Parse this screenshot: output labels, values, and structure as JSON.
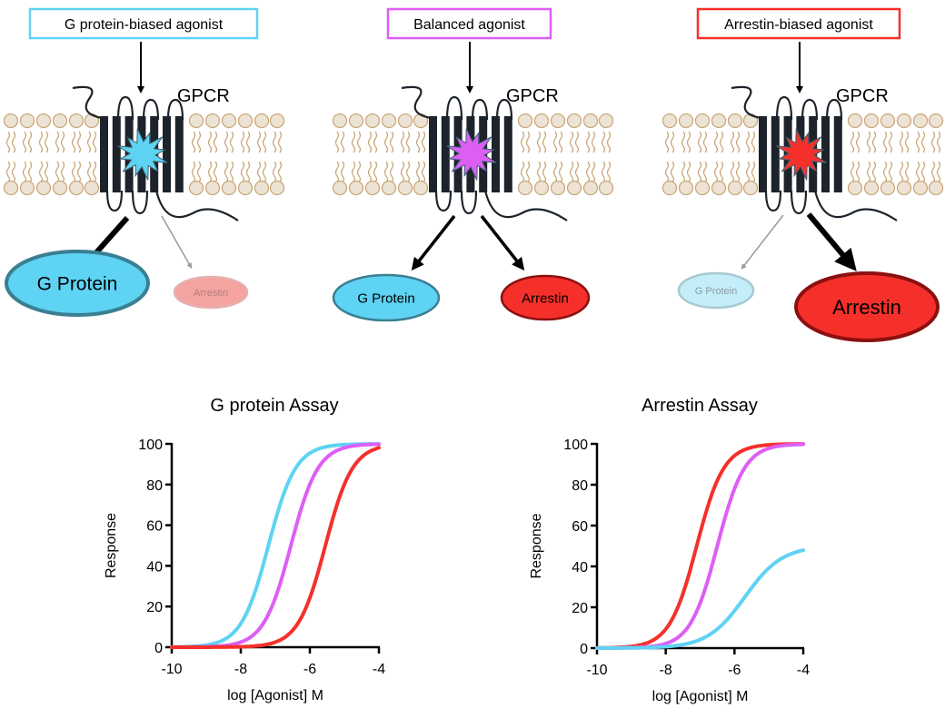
{
  "panels": [
    {
      "label": "G protein-biased agonist",
      "receptor_label": "GPCR",
      "ligand_color": "#5ed3f3",
      "border_color": "#5ed3f3",
      "g_protein": {
        "label": "G Protein",
        "emphasis": "strong"
      },
      "arrestin": {
        "label": "Arrestin",
        "emphasis": "weak"
      }
    },
    {
      "label": "Balanced agonist",
      "receptor_label": "GPCR",
      "ligand_color": "#dd5ef5",
      "border_color": "#dd5ef5",
      "g_protein": {
        "label": "G Protein",
        "emphasis": "medium"
      },
      "arrestin": {
        "label": "Arrestin",
        "emphasis": "medium"
      }
    },
    {
      "label": "Arrestin-biased agonist",
      "receptor_label": "GPCR",
      "ligand_color": "#f5302a",
      "border_color": "#f5302a",
      "g_protein": {
        "label": "G Protein",
        "emphasis": "weak"
      },
      "arrestin": {
        "label": "Arrestin",
        "emphasis": "strong"
      }
    }
  ],
  "colors": {
    "g_protein": "#5ed3f3",
    "balanced": "#dd5ef5",
    "arrestin": "#f5302a",
    "lipid": "#c9a878",
    "lipid_head": "#ede3d4"
  },
  "chart_data": [
    {
      "type": "line",
      "title": "G protein Assay",
      "xlabel": "log [Agonist] M",
      "ylabel": "Response",
      "xlim": [
        -10,
        -4
      ],
      "ylim": [
        0,
        100
      ],
      "xticks": [
        "-10",
        "-8",
        "-6",
        "-4"
      ],
      "yticks": [
        "0",
        "20",
        "40",
        "60",
        "80",
        "100"
      ],
      "grid": false,
      "series": [
        {
          "color": "#5ed3f3",
          "model": "sigmoid",
          "top": 100,
          "log_ec50": -7.2,
          "hill": 1.1
        },
        {
          "color": "#dd5ef5",
          "model": "sigmoid",
          "top": 100,
          "log_ec50": -6.55,
          "hill": 1.1
        },
        {
          "color": "#f5302a",
          "model": "sigmoid",
          "top": 100,
          "log_ec50": -5.55,
          "hill": 1.1
        }
      ]
    },
    {
      "type": "line",
      "title": "Arrestin Assay",
      "xlabel": "log [Agonist] M",
      "ylabel": "Response",
      "xlim": [
        -10,
        -4
      ],
      "ylim": [
        0,
        100
      ],
      "xticks": [
        "-10",
        "-8",
        "-6",
        "-4"
      ],
      "yticks": [
        "0",
        "20",
        "40",
        "60",
        "80",
        "100"
      ],
      "grid": false,
      "series": [
        {
          "color": "#f5302a",
          "model": "sigmoid",
          "top": 100,
          "log_ec50": -7.1,
          "hill": 1.1
        },
        {
          "color": "#dd5ef5",
          "model": "sigmoid",
          "top": 100,
          "log_ec50": -6.5,
          "hill": 1.1
        },
        {
          "color": "#5ed3f3",
          "model": "sigmoid",
          "top": 50,
          "log_ec50": -5.7,
          "hill": 0.8
        }
      ]
    }
  ]
}
